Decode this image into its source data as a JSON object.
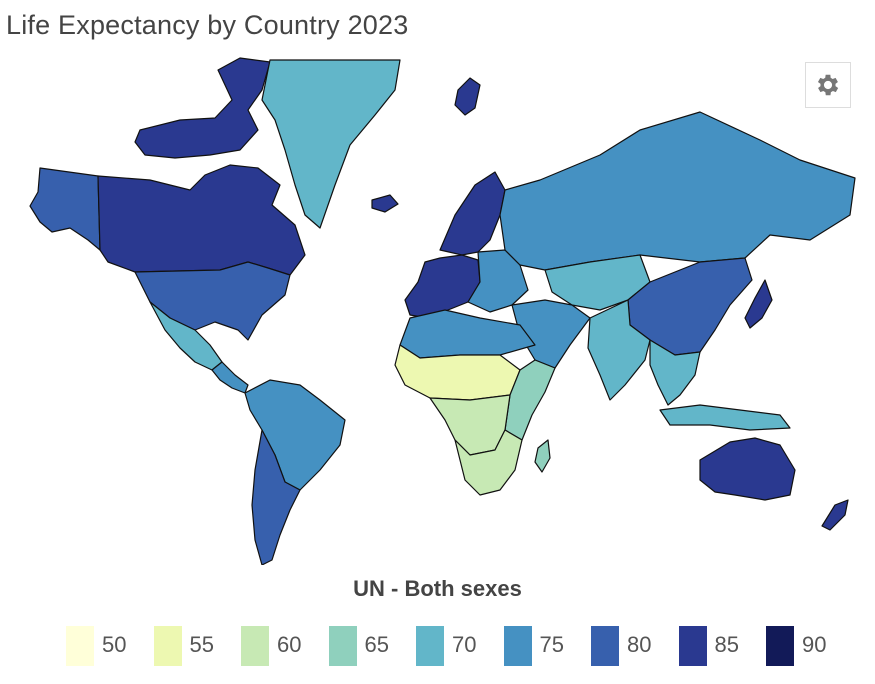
{
  "title": "Life Expectancy by Country 2023",
  "settings_icon": "gear-icon",
  "legend": {
    "title": "UN - Both sexes",
    "items": [
      {
        "label": "50",
        "color": "#ffffd9"
      },
      {
        "label": "55",
        "color": "#edf8b1"
      },
      {
        "label": "60",
        "color": "#c7e9b4"
      },
      {
        "label": "65",
        "color": "#8fd0bd"
      },
      {
        "label": "70",
        "color": "#62b6c9"
      },
      {
        "label": "75",
        "color": "#4591c2"
      },
      {
        "label": "80",
        "color": "#3760ad"
      },
      {
        "label": "85",
        "color": "#2a3990"
      },
      {
        "label": "90",
        "color": "#121a58"
      }
    ]
  },
  "regions": [
    {
      "id": "canada",
      "color": "#2a3990"
    },
    {
      "id": "usa",
      "color": "#3760ad"
    },
    {
      "id": "alaska",
      "color": "#3760ad"
    },
    {
      "id": "greenland",
      "color": "#62b6c9"
    },
    {
      "id": "mexico",
      "color": "#62b6c9"
    },
    {
      "id": "central-america",
      "color": "#4591c2"
    },
    {
      "id": "south-america",
      "color": "#4591c2"
    },
    {
      "id": "chile-argentina",
      "color": "#3760ad"
    },
    {
      "id": "europe-west",
      "color": "#2a3990"
    },
    {
      "id": "europe-east",
      "color": "#4591c2"
    },
    {
      "id": "scandinavia",
      "color": "#2a3990"
    },
    {
      "id": "russia",
      "color": "#4591c2"
    },
    {
      "id": "central-asia",
      "color": "#62b6c9"
    },
    {
      "id": "middle-east",
      "color": "#4591c2"
    },
    {
      "id": "south-asia",
      "color": "#62b6c9"
    },
    {
      "id": "china",
      "color": "#3760ad"
    },
    {
      "id": "japan",
      "color": "#2a3990"
    },
    {
      "id": "southeast-asia",
      "color": "#62b6c9"
    },
    {
      "id": "north-africa",
      "color": "#4591c2"
    },
    {
      "id": "sahel",
      "color": "#edf8b1"
    },
    {
      "id": "central-africa",
      "color": "#c7e9b4"
    },
    {
      "id": "east-africa",
      "color": "#8fd0bd"
    },
    {
      "id": "southern-africa",
      "color": "#c7e9b4"
    },
    {
      "id": "madagascar",
      "color": "#8fd0bd"
    },
    {
      "id": "australia",
      "color": "#2a3990"
    },
    {
      "id": "new-zealand",
      "color": "#2a3990"
    },
    {
      "id": "indonesia",
      "color": "#62b6c9"
    },
    {
      "id": "svalbard",
      "color": "#2a3990"
    },
    {
      "id": "iceland",
      "color": "#2a3990"
    }
  ]
}
